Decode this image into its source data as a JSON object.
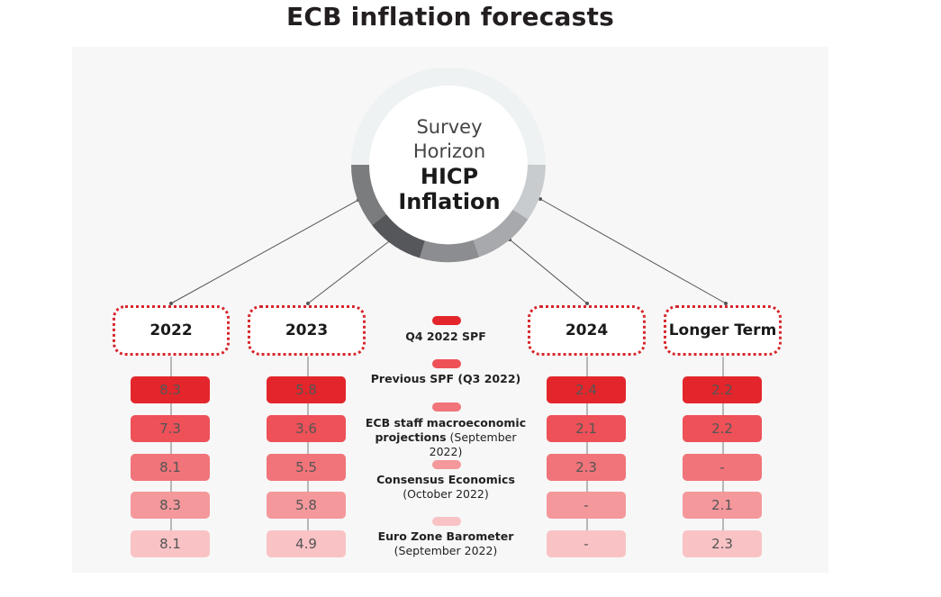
{
  "title": "ECB inflation forecasts",
  "hub": {
    "line1": "Survey",
    "line2": "Horizon",
    "line3": "HICP",
    "line4": "Inflation"
  },
  "colors": {
    "q4_2022_spf": "#e3262b",
    "previous_spf": "#ee5158",
    "ecb_staff": "#f07479",
    "consensus": "#f4989c",
    "barometer": "#f9c3c6",
    "frame": "#d6262b"
  },
  "legend": [
    {
      "bold": "Q4  2022 SPF",
      "normal": ""
    },
    {
      "bold": "Previous SPF (Q3 2022)",
      "normal": ""
    },
    {
      "bold": "ECB staff macroeconomic projections",
      "normal": "(September 2022)"
    },
    {
      "bold": "Consensus Economics",
      "normal": "(October 2022)"
    },
    {
      "bold": "Euro Zone Barometer",
      "normal": "(September 2022)"
    }
  ],
  "horizons": [
    {
      "label": "2022",
      "values": [
        "8.3",
        "7.3",
        "8.1",
        "8.3",
        "8.1"
      ]
    },
    {
      "label": "2023",
      "values": [
        "5.8",
        "3.6",
        "5.5",
        "5.8",
        "4.9"
      ]
    },
    {
      "label": "2024",
      "values": [
        "2.4",
        "2.1",
        "2.3",
        "-",
        "-"
      ]
    },
    {
      "label": "Longer Term",
      "values": [
        "2.2",
        "2.2",
        "-",
        "2.1",
        "2.3"
      ]
    }
  ]
}
